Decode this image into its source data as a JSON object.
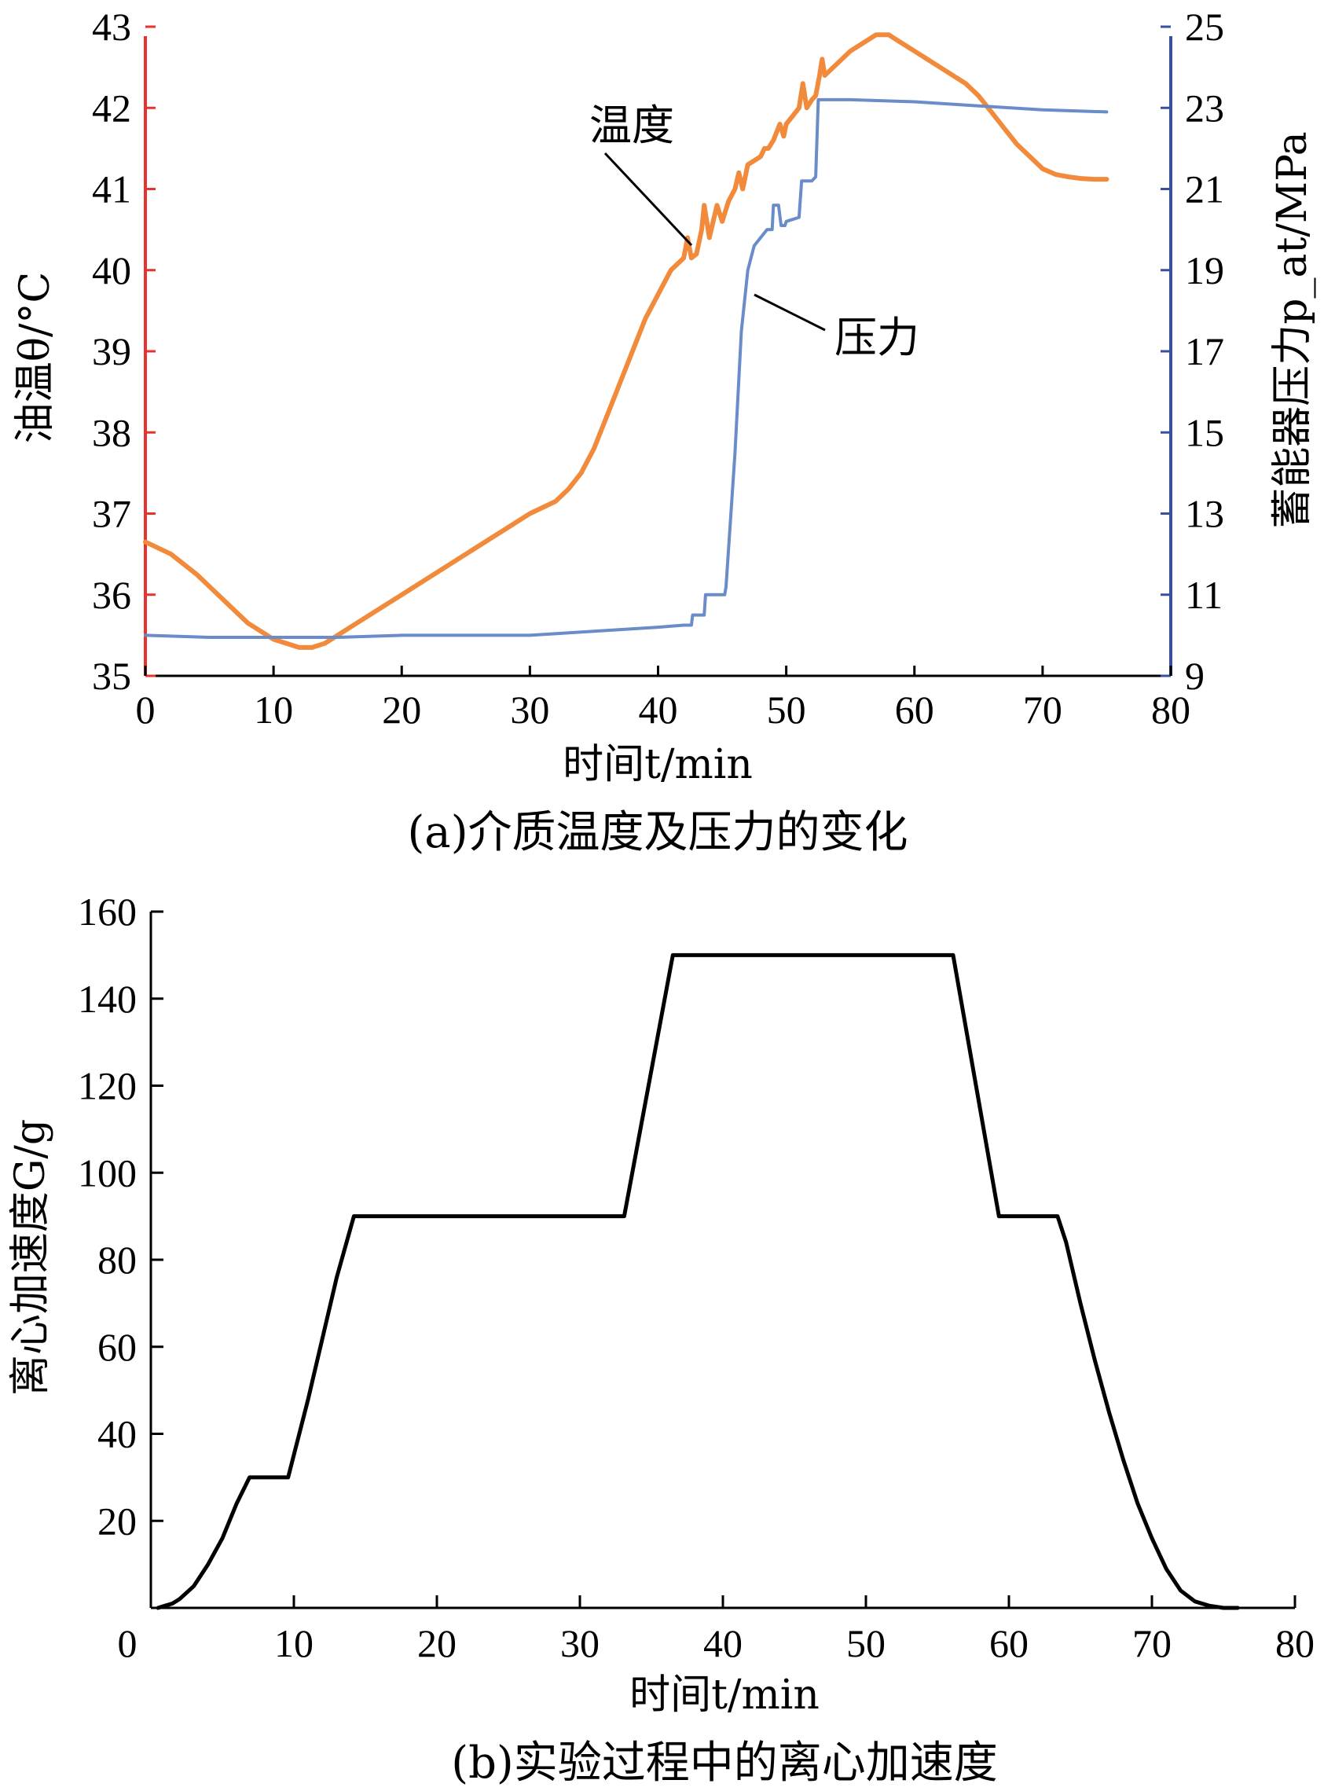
{
  "chart_data": [
    {
      "type": "line",
      "caption": "(a)介质温度及压力的变化",
      "xlabel": "时间t/min",
      "x_ticks": [
        "0",
        "10",
        "20",
        "30",
        "40",
        "50",
        "60",
        "70",
        "80"
      ],
      "xlim": [
        0,
        80
      ],
      "left_axis": {
        "label": "油温θ/°C",
        "ylim": [
          35,
          43
        ],
        "ticks": [
          "35",
          "36",
          "37",
          "38",
          "39",
          "40",
          "41",
          "42",
          "43"
        ],
        "color": "#e8322e"
      },
      "right_axis": {
        "label": "蓄能器压力p_at/MPa",
        "ylim": [
          9,
          25
        ],
        "ticks": [
          "9",
          "11",
          "13",
          "15",
          "17",
          "19",
          "21",
          "23",
          "25"
        ],
        "color": "#3a4fa0"
      },
      "annotations": {
        "temperature": "温度",
        "pressure": "压力"
      },
      "series": [
        {
          "name": "温度",
          "axis": "left",
          "color": "#f28a3c",
          "x": [
            0,
            2,
            4,
            6,
            8,
            10,
            12,
            13,
            14,
            16,
            18,
            20,
            22,
            24,
            26,
            28,
            30,
            32,
            33,
            34,
            35,
            36,
            37,
            38,
            39,
            40,
            41,
            42,
            42.3,
            42.6,
            43,
            43.4,
            43.6,
            44,
            44.3,
            44.6,
            45,
            45.5,
            46,
            46.3,
            46.6,
            47,
            47.5,
            48,
            48.3,
            48.6,
            49,
            49.5,
            49.8,
            50,
            50.5,
            51,
            51.3,
            51.6,
            52,
            52.3,
            52.6,
            52.8,
            53,
            54,
            55,
            56,
            57,
            58,
            59,
            60,
            61,
            62,
            63,
            64,
            65,
            66,
            67,
            68,
            69,
            70,
            71,
            72,
            73,
            74,
            75
          ],
          "y": [
            36.65,
            36.5,
            36.25,
            35.95,
            35.65,
            35.45,
            35.35,
            35.35,
            35.4,
            35.6,
            35.8,
            36.0,
            36.2,
            36.4,
            36.6,
            36.8,
            37.0,
            37.15,
            37.3,
            37.5,
            37.8,
            38.2,
            38.6,
            39.0,
            39.4,
            39.7,
            40.0,
            40.15,
            40.4,
            40.15,
            40.2,
            40.5,
            40.8,
            40.4,
            40.6,
            40.8,
            40.6,
            40.85,
            41.0,
            41.2,
            41.0,
            41.3,
            41.35,
            41.4,
            41.5,
            41.5,
            41.6,
            41.8,
            41.65,
            41.8,
            41.9,
            42.0,
            42.3,
            42.0,
            42.1,
            42.15,
            42.4,
            42.6,
            42.4,
            42.55,
            42.7,
            42.8,
            42.9,
            42.9,
            42.8,
            42.7,
            42.6,
            42.5,
            42.4,
            42.3,
            42.15,
            41.95,
            41.75,
            41.55,
            41.4,
            41.25,
            41.18,
            41.15,
            41.13,
            41.12,
            41.12
          ]
        },
        {
          "name": "压力",
          "axis": "right",
          "color": "#6a8cc8",
          "x": [
            0,
            5,
            10,
            15,
            20,
            25,
            30,
            35,
            40,
            42,
            42.6,
            42.7,
            43.6,
            43.7,
            45.2,
            45.3,
            46,
            46.5,
            47,
            47.5,
            48,
            48.5,
            48.9,
            49,
            49.4,
            49.6,
            49.9,
            50,
            50.5,
            51,
            51.2,
            52,
            52.3,
            52.5,
            53,
            55,
            60,
            65,
            70,
            75
          ],
          "y": [
            10.0,
            9.95,
            9.95,
            9.95,
            10.0,
            10.0,
            10.0,
            10.1,
            10.2,
            10.25,
            10.25,
            10.5,
            10.5,
            11.0,
            11.0,
            11.2,
            14.5,
            17.5,
            19.0,
            19.6,
            19.8,
            20.0,
            20.0,
            20.6,
            20.6,
            20.1,
            20.1,
            20.2,
            20.25,
            20.3,
            21.2,
            21.2,
            21.3,
            23.2,
            23.2,
            23.2,
            23.15,
            23.05,
            22.95,
            22.9
          ]
        }
      ]
    },
    {
      "type": "line",
      "caption": "(b)实验过程中的离心加速度",
      "xlabel": "时间t/min",
      "ylabel": "离心加速度G/g",
      "xlim": [
        0,
        80
      ],
      "ylim": [
        0,
        160
      ],
      "x_ticks": [
        "0",
        "10",
        "20",
        "30",
        "40",
        "50",
        "60",
        "70",
        "80"
      ],
      "y_ticks": [
        "20",
        "40",
        "60",
        "80",
        "100",
        "120",
        "140",
        "160"
      ],
      "series": [
        {
          "color": "#000000",
          "x": [
            0.5,
            1,
            1.5,
            2,
            3,
            4,
            5,
            6,
            6.9,
            7,
            9.5,
            9.6,
            11,
            12,
            13,
            14.2,
            14.3,
            33,
            33.1,
            36.5,
            36.6,
            56,
            56.1,
            59.3,
            59.4,
            63.3,
            63.4,
            64,
            65,
            66,
            67,
            68,
            69,
            70,
            71,
            72,
            73,
            74,
            75,
            76
          ],
          "y": [
            0,
            0.5,
            1,
            2,
            5,
            10,
            16,
            24,
            30,
            30,
            30,
            30,
            48,
            62,
            76,
            90,
            90,
            90,
            90,
            150,
            150,
            150,
            150,
            90,
            90,
            90,
            90,
            84,
            70,
            57,
            45,
            34,
            24,
            16,
            9,
            4,
            1.5,
            0.5,
            0,
            0
          ]
        }
      ]
    }
  ]
}
